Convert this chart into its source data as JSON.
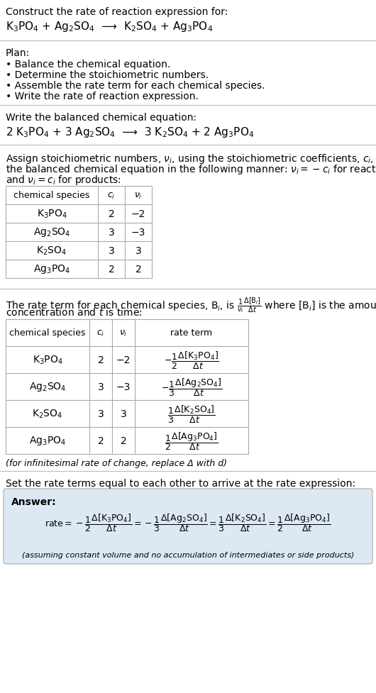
{
  "title_text": "Construct the rate of reaction expression for:",
  "reaction_unbalanced": "K$_3$PO$_4$ + Ag$_2$SO$_4$  ⟶  K$_2$SO$_4$ + Ag$_3$PO$_4$",
  "plan_header": "Plan:",
  "plan_items": [
    "• Balance the chemical equation.",
    "• Determine the stoichiometric numbers.",
    "• Assemble the rate term for each chemical species.",
    "• Write the rate of reaction expression."
  ],
  "balanced_header": "Write the balanced chemical equation:",
  "reaction_balanced": "2 K$_3$PO$_4$ + 3 Ag$_2$SO$_4$  ⟶  3 K$_2$SO$_4$ + 2 Ag$_3$PO$_4$",
  "assign_text1": "Assign stoichiometric numbers, $\\nu_i$, using the stoichiometric coefficients, $c_i$, from",
  "assign_text2": "the balanced chemical equation in the following manner: $\\nu_i = -c_i$ for reactants",
  "assign_text3": "and $\\nu_i = c_i$ for products:",
  "table1_headers": [
    "chemical species",
    "$c_i$",
    "$\\nu_i$"
  ],
  "table1_rows": [
    [
      "K$_3$PO$_4$",
      "2",
      "−2"
    ],
    [
      "Ag$_2$SO$_4$",
      "3",
      "−3"
    ],
    [
      "K$_2$SO$_4$",
      "3",
      "3"
    ],
    [
      "Ag$_3$PO$_4$",
      "2",
      "2"
    ]
  ],
  "rate_text1": "The rate term for each chemical species, B$_i$, is $\\frac{1}{\\nu_i}\\frac{\\Delta[\\mathrm{B}_i]}{\\Delta t}$ where [B$_i$] is the amount",
  "rate_text2": "concentration and $t$ is time:",
  "table2_headers": [
    "chemical species",
    "$c_i$",
    "$\\nu_i$",
    "rate term"
  ],
  "table2_rows": [
    [
      "K$_3$PO$_4$",
      "2",
      "−2",
      "$-\\dfrac{1}{2}\\dfrac{\\Delta[\\mathrm{K_3PO_4}]}{\\Delta t}$"
    ],
    [
      "Ag$_2$SO$_4$",
      "3",
      "−3",
      "$-\\dfrac{1}{3}\\dfrac{\\Delta[\\mathrm{Ag_2SO_4}]}{\\Delta t}$"
    ],
    [
      "K$_2$SO$_4$",
      "3",
      "3",
      "$\\dfrac{1}{3}\\dfrac{\\Delta[\\mathrm{K_2SO_4}]}{\\Delta t}$"
    ],
    [
      "Ag$_3$PO$_4$",
      "2",
      "2",
      "$\\dfrac{1}{2}\\dfrac{\\Delta[\\mathrm{Ag_3PO_4}]}{\\Delta t}$"
    ]
  ],
  "infinitesimal_note": "(for infinitesimal rate of change, replace Δ with d)",
  "set_text": "Set the rate terms equal to each other to arrive at the rate expression:",
  "answer_label": "Answer:",
  "answer_box_color": "#dce9f5",
  "background_color": "#ffffff",
  "text_color": "#000000",
  "table_border_color": "#aaaaaa",
  "answer_rate_line1": "$\\mathrm{rate} = -\\dfrac{1}{2}\\dfrac{\\Delta[\\mathrm{K_3PO_4}]}{\\Delta t} = -\\dfrac{1}{3}\\dfrac{\\Delta[\\mathrm{Ag_2SO_4}]}{\\Delta t} = \\dfrac{1}{3}\\dfrac{\\Delta[\\mathrm{K_2SO_4}]}{\\Delta t} = \\dfrac{1}{2}\\dfrac{\\Delta[\\mathrm{Ag_3PO_4}]}{\\Delta t}$",
  "answer_note": "(assuming constant volume and no accumulation of intermediates or side products)"
}
